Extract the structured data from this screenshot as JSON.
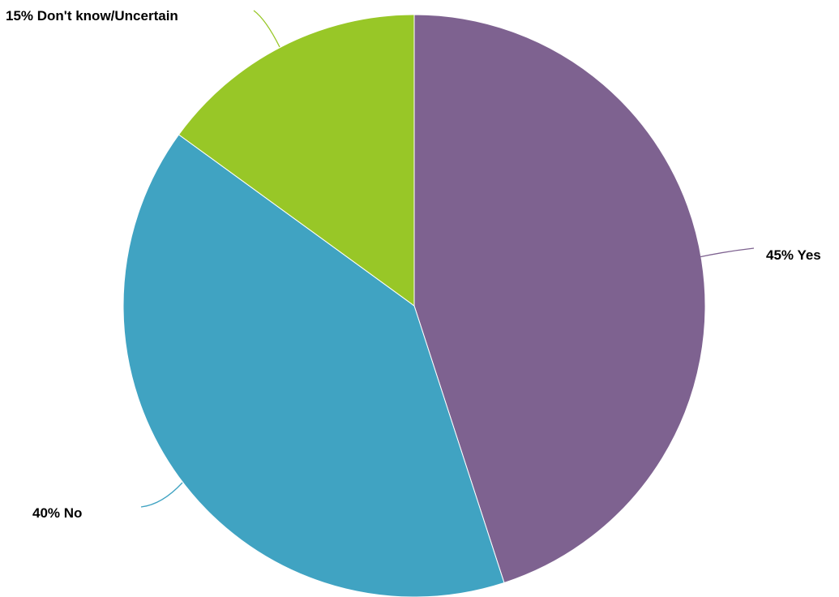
{
  "chart_data": {
    "type": "pie",
    "start_angle_deg": 0,
    "direction": "clockwise",
    "slices": [
      {
        "label": "Yes",
        "value": 45,
        "display": "45% Yes",
        "color": "#7e6290"
      },
      {
        "label": "No",
        "value": 40,
        "display": "40% No",
        "color": "#40a3c2"
      },
      {
        "label": "Don't know/Uncertain",
        "value": 15,
        "display": "15% Don't know/Uncertain",
        "color": "#98c727"
      }
    ]
  }
}
